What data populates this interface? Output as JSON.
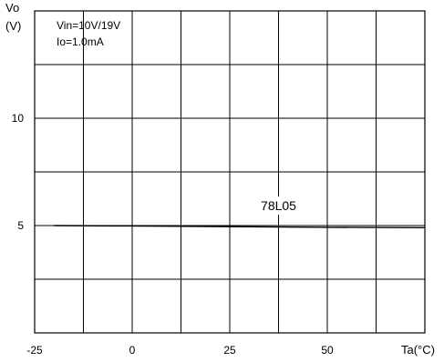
{
  "chart_data": {
    "type": "line",
    "ylabel_line1": "Vo",
    "ylabel_line2": "(V)",
    "xlabel": "Ta(°C)",
    "conditions": [
      "Vin=10V/19V",
      "Io=1.0mA"
    ],
    "xlim": [
      -25,
      75
    ],
    "ylim": [
      0,
      15
    ],
    "grid": true,
    "x_ticks": [
      {
        "value": -25,
        "label": "-25"
      },
      {
        "value": 0,
        "label": "0"
      },
      {
        "value": 25,
        "label": "25"
      },
      {
        "value": 50,
        "label": "50"
      }
    ],
    "y_ticks": [
      {
        "value": 10,
        "label": "10"
      },
      {
        "value": 5,
        "label": "5"
      }
    ],
    "grid_x": [
      -12.5,
      0,
      12.5,
      25,
      37.5,
      50,
      62.5
    ],
    "grid_y": [
      2.5,
      5,
      7.5,
      10,
      12.5
    ],
    "series": [
      {
        "name": "78L05",
        "x": [
          -20,
          0,
          25,
          50,
          75
        ],
        "y": [
          5.0,
          4.98,
          4.95,
          4.92,
          4.9
        ]
      }
    ]
  }
}
